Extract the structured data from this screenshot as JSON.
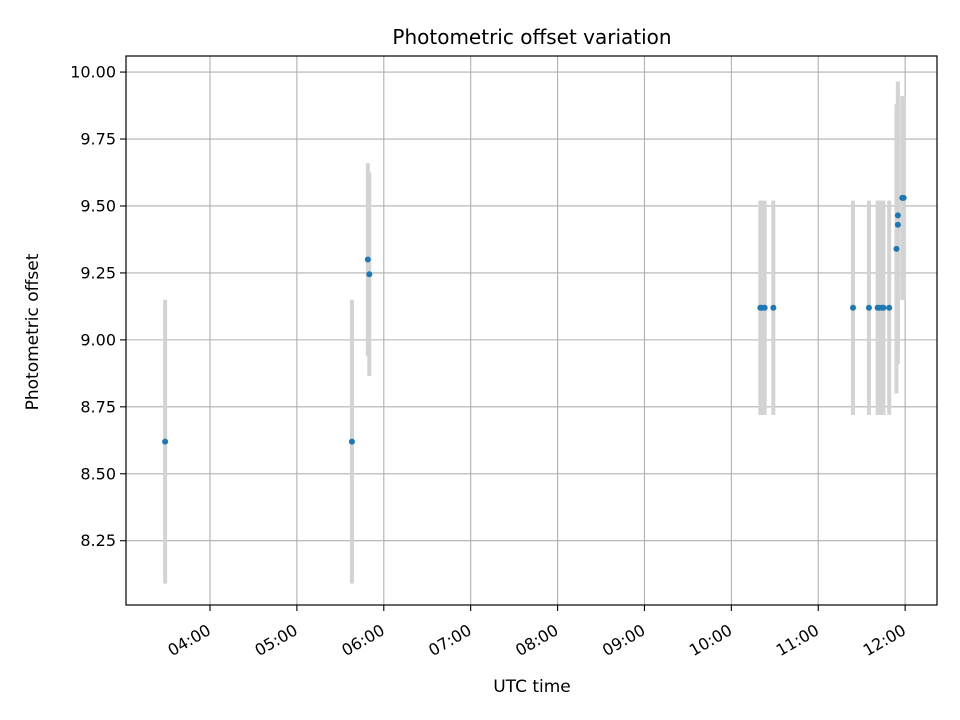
{
  "chart_data": {
    "type": "scatter",
    "title": "Photometric offset variation",
    "xlabel": "UTC time",
    "ylabel": "Photometric offset",
    "x_tick_labels": [
      "04:00",
      "05:00",
      "06:00",
      "07:00",
      "08:00",
      "09:00",
      "10:00",
      "11:00",
      "12:00"
    ],
    "y_tick_labels": [
      "8.25",
      "8.50",
      "8.75",
      "9.00",
      "9.25",
      "9.50",
      "9.75",
      "10.00"
    ],
    "x_ticks": [
      "04:00",
      "05:00",
      "06:00",
      "07:00",
      "08:00",
      "09:00",
      "10:00",
      "11:00",
      "12:00"
    ],
    "y_ticks": [
      8.25,
      8.5,
      8.75,
      9.0,
      9.25,
      9.5,
      9.75,
      10.0
    ],
    "xlim": [
      "03:02",
      "12:22"
    ],
    "ylim": [
      8.01,
      10.06
    ],
    "grid": true,
    "marker_color": "#1f77b4",
    "errorbar_color": "#d3d3d3",
    "points": [
      {
        "x": "03:29",
        "y": 8.62,
        "err": 0.53
      },
      {
        "x": "05:38",
        "y": 8.62,
        "err": 0.53
      },
      {
        "x": "05:49",
        "y": 9.3,
        "err": 0.36
      },
      {
        "x": "05:50",
        "y": 9.245,
        "err": 0.38
      },
      {
        "x": "10:20",
        "y": 9.12,
        "err": 0.4
      },
      {
        "x": "10:21",
        "y": 9.12,
        "err": 0.4
      },
      {
        "x": "10:23",
        "y": 9.12,
        "err": 0.4
      },
      {
        "x": "10:29",
        "y": 9.12,
        "err": 0.4
      },
      {
        "x": "11:24",
        "y": 9.12,
        "err": 0.4
      },
      {
        "x": "11:35",
        "y": 9.12,
        "err": 0.4
      },
      {
        "x": "11:41",
        "y": 9.12,
        "err": 0.4
      },
      {
        "x": "11:42",
        "y": 9.12,
        "err": 0.4
      },
      {
        "x": "11:44",
        "y": 9.12,
        "err": 0.4
      },
      {
        "x": "11:45",
        "y": 9.12,
        "err": 0.4
      },
      {
        "x": "11:49",
        "y": 9.12,
        "err": 0.4
      },
      {
        "x": "11:54",
        "y": 9.34,
        "err": 0.54
      },
      {
        "x": "11:55",
        "y": 9.465,
        "err": 0.5
      },
      {
        "x": "11:55",
        "y": 9.43,
        "err": 0.52
      },
      {
        "x": "11:58",
        "y": 9.53,
        "err": 0.38
      },
      {
        "x": "11:59",
        "y": 9.53,
        "err": 0.38
      }
    ]
  }
}
